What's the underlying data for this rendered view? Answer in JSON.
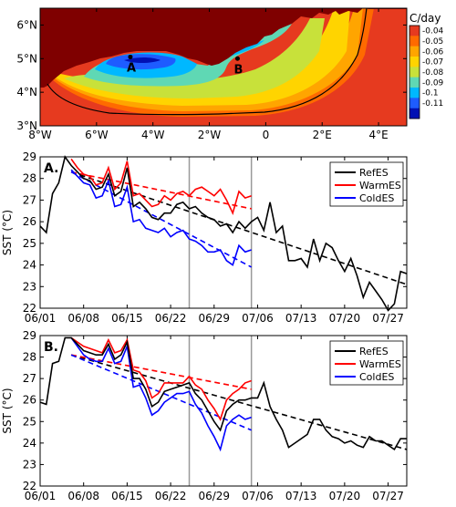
{
  "chart_data": [
    {
      "type": "heatmap",
      "title": "",
      "colorbar_title": "C/day",
      "colorbar_ticks": [
        "-0.04",
        "-0.05",
        "-0.06",
        "-0.07",
        "-0.08",
        "-0.09",
        "-0.1",
        "-0.11"
      ],
      "colorbar_values": [
        -0.04,
        -0.05,
        -0.06,
        -0.07,
        -0.08,
        -0.09,
        -0.1,
        -0.11
      ],
      "colorbar_colors": [
        "#e63a1f",
        "#ff6a00",
        "#ffa500",
        "#ffd400",
        "#c8e13a",
        "#5fd8b4",
        "#00b8ff",
        "#1e5cff",
        "#0010b4"
      ],
      "land_color": "#7f0000",
      "xlabels": [
        "8°W",
        "6°W",
        "4°W",
        "2°W",
        "0",
        "2°E",
        "4°E"
      ],
      "xticks": [
        -8,
        -6,
        -4,
        -2,
        0,
        2,
        4
      ],
      "ylabels": [
        "6°N",
        "5°N",
        "4°N",
        "3°N"
      ],
      "yticks": [
        6,
        5,
        4,
        3
      ],
      "xlim": [
        -8,
        5
      ],
      "ylim": [
        3,
        6.5
      ],
      "points": [
        {
          "label": "A",
          "lon": -4.8,
          "lat": 5.05
        },
        {
          "label": "B",
          "lon": -1.0,
          "lat": 5.0
        }
      ]
    },
    {
      "type": "line",
      "panel_label": "A.",
      "ylabel": "SST (°C)",
      "xlabels": [
        "06/01",
        "06/08",
        "06/15",
        "06/22",
        "06/29",
        "07/06",
        "07/13",
        "07/20",
        "07/27"
      ],
      "xticks": [
        0,
        7,
        14,
        21,
        28,
        35,
        42,
        49,
        56
      ],
      "xlim": [
        0,
        59
      ],
      "ylim": [
        22,
        29
      ],
      "yticks": [
        22,
        23,
        24,
        25,
        26,
        27,
        28,
        29
      ],
      "vlines": [
        24,
        34
      ],
      "series": [
        {
          "name": "RefES",
          "color": "#000000",
          "x": [
            0,
            1,
            2,
            3,
            4,
            5,
            6,
            7,
            8,
            9,
            10,
            11,
            12,
            13,
            14,
            15,
            16,
            17,
            18,
            19,
            20,
            21,
            22,
            23,
            24,
            25,
            26,
            27,
            28,
            29,
            30,
            31,
            32,
            33,
            34,
            35,
            36,
            37,
            38,
            39,
            40,
            41,
            42,
            43,
            44,
            45,
            46,
            47,
            48,
            49,
            50,
            51,
            52,
            53,
            54,
            55,
            56,
            57,
            58,
            59
          ],
          "y": [
            25.8,
            25.5,
            27.3,
            27.8,
            29.0,
            28.6,
            28.3,
            28.0,
            27.9,
            27.5,
            27.6,
            28.2,
            27.2,
            27.4,
            28.5,
            26.7,
            26.9,
            26.6,
            26.2,
            26.1,
            26.4,
            26.4,
            26.8,
            26.9,
            26.6,
            26.7,
            26.4,
            26.2,
            26.1,
            25.8,
            25.9,
            25.5,
            26.0,
            25.7,
            26.0,
            26.2,
            25.6,
            26.9,
            25.5,
            25.8,
            24.2,
            24.2,
            24.3,
            23.9,
            25.2,
            24.2,
            25.0,
            24.8,
            24.2,
            23.7,
            24.3,
            23.5,
            22.5,
            23.2,
            22.8,
            22.4,
            21.9,
            22.2,
            23.7,
            23.6
          ]
        },
        {
          "name": "WarmES",
          "color": "#ff0000",
          "x": [
            5,
            6,
            7,
            8,
            9,
            10,
            11,
            12,
            13,
            14,
            15,
            16,
            17,
            18,
            19,
            20,
            21,
            22,
            23,
            24,
            25,
            26,
            27,
            28,
            29,
            30,
            31,
            32,
            33,
            34
          ],
          "y": [
            28.9,
            28.5,
            28.2,
            28.1,
            27.7,
            27.8,
            28.5,
            27.5,
            27.8,
            28.8,
            27.2,
            27.3,
            27.0,
            26.7,
            26.8,
            27.2,
            27.0,
            27.3,
            27.4,
            27.2,
            27.5,
            27.6,
            27.4,
            27.2,
            27.5,
            27.0,
            26.4,
            27.4,
            27.1,
            27.2
          ]
        },
        {
          "name": "ColdES",
          "color": "#0000ff",
          "x": [
            5,
            6,
            7,
            8,
            9,
            10,
            11,
            12,
            13,
            14,
            15,
            16,
            17,
            18,
            19,
            20,
            21,
            22,
            23,
            24,
            25,
            26,
            27,
            28,
            29,
            30,
            31,
            32,
            33,
            34
          ],
          "y": [
            28.4,
            28.1,
            27.8,
            27.7,
            27.1,
            27.2,
            27.9,
            26.7,
            26.8,
            27.6,
            26.0,
            26.1,
            25.7,
            25.6,
            25.5,
            25.7,
            25.3,
            25.5,
            25.6,
            25.2,
            25.1,
            24.9,
            24.6,
            24.6,
            24.7,
            24.2,
            24.0,
            24.9,
            24.6,
            24.7
          ]
        }
      ],
      "trendlines": [
        {
          "series": "RefES",
          "color": "#000000",
          "x": [
            5,
            59
          ],
          "y": [
            28.3,
            23.1
          ]
        },
        {
          "series": "WarmES",
          "color": "#ff0000",
          "x": [
            5,
            34
          ],
          "y": [
            28.3,
            26.6
          ]
        },
        {
          "series": "ColdES",
          "color": "#0000ff",
          "x": [
            5,
            34
          ],
          "y": [
            28.3,
            23.9
          ]
        }
      ],
      "legend": "top-right"
    },
    {
      "type": "line",
      "panel_label": "B.",
      "ylabel": "SST (°C)",
      "xlabels": [
        "06/01",
        "06/08",
        "06/15",
        "06/22",
        "06/29",
        "07/06",
        "07/13",
        "07/20",
        "07/27"
      ],
      "xticks": [
        0,
        7,
        14,
        21,
        28,
        35,
        42,
        49,
        56
      ],
      "xlim": [
        0,
        59
      ],
      "ylim": [
        22,
        29
      ],
      "yticks": [
        22,
        23,
        24,
        25,
        26,
        27,
        28,
        29
      ],
      "vlines": [
        24,
        34
      ],
      "series": [
        {
          "name": "RefES",
          "color": "#000000",
          "x": [
            0,
            1,
            2,
            3,
            4,
            5,
            6,
            7,
            8,
            9,
            10,
            11,
            12,
            13,
            14,
            15,
            16,
            17,
            18,
            19,
            20,
            21,
            22,
            23,
            24,
            25,
            26,
            27,
            28,
            29,
            30,
            31,
            32,
            33,
            34,
            35,
            36,
            37,
            38,
            39,
            40,
            41,
            42,
            43,
            44,
            45,
            46,
            47,
            48,
            49,
            50,
            51,
            52,
            53,
            54,
            55,
            56,
            57,
            58,
            59
          ],
          "y": [
            25.9,
            25.8,
            27.7,
            27.8,
            28.9,
            28.9,
            28.6,
            28.3,
            28.2,
            28.1,
            28.1,
            28.6,
            27.9,
            28.1,
            28.7,
            27.0,
            27.0,
            26.5,
            25.7,
            25.9,
            26.4,
            26.5,
            26.6,
            26.7,
            26.8,
            26.3,
            26.0,
            25.5,
            25.0,
            24.6,
            25.5,
            25.8,
            26.0,
            26.0,
            26.1,
            26.1,
            26.8,
            25.7,
            25.1,
            24.6,
            23.8,
            24.0,
            24.2,
            24.4,
            25.1,
            25.1,
            24.6,
            24.3,
            24.2,
            24.0,
            24.1,
            23.9,
            23.8,
            24.3,
            24.1,
            24.1,
            23.9,
            23.7,
            24.2,
            24.2
          ]
        },
        {
          "name": "WarmES",
          "color": "#ff0000",
          "x": [
            5,
            6,
            7,
            8,
            9,
            10,
            11,
            12,
            13,
            14,
            15,
            16,
            17,
            18,
            19,
            20,
            21,
            22,
            23,
            24,
            25,
            26,
            27,
            28,
            29,
            30,
            31,
            32,
            33,
            34
          ],
          "y": [
            28.9,
            28.7,
            28.5,
            28.4,
            28.3,
            28.2,
            28.8,
            28.2,
            28.3,
            28.8,
            27.4,
            27.3,
            26.9,
            26.1,
            26.3,
            26.8,
            26.8,
            26.8,
            26.8,
            27.1,
            26.7,
            26.5,
            26.0,
            25.6,
            25.1,
            26.0,
            26.3,
            26.5,
            26.8,
            26.9
          ]
        },
        {
          "name": "ColdES",
          "color": "#0000ff",
          "x": [
            5,
            6,
            7,
            8,
            9,
            10,
            11,
            12,
            13,
            14,
            15,
            16,
            17,
            18,
            19,
            20,
            21,
            22,
            23,
            24,
            25,
            26,
            27,
            28,
            29,
            30,
            31,
            32,
            33,
            34
          ],
          "y": [
            28.9,
            28.5,
            28.1,
            27.9,
            27.8,
            27.8,
            28.4,
            27.7,
            27.8,
            28.5,
            26.6,
            26.7,
            26.1,
            25.3,
            25.5,
            25.9,
            26.1,
            26.3,
            26.3,
            26.4,
            25.8,
            25.4,
            24.8,
            24.3,
            23.7,
            24.8,
            25.1,
            25.3,
            25.1,
            25.2
          ]
        }
      ],
      "trendlines": [
        {
          "series": "RefES",
          "color": "#000000",
          "x": [
            5,
            59
          ],
          "y": [
            28.1,
            23.7
          ]
        },
        {
          "series": "WarmES",
          "color": "#ff0000",
          "x": [
            5,
            34
          ],
          "y": [
            28.1,
            26.5
          ]
        },
        {
          "series": "ColdES",
          "color": "#0000ff",
          "x": [
            5,
            34
          ],
          "y": [
            28.1,
            24.6
          ]
        }
      ],
      "legend": "top-right"
    }
  ]
}
